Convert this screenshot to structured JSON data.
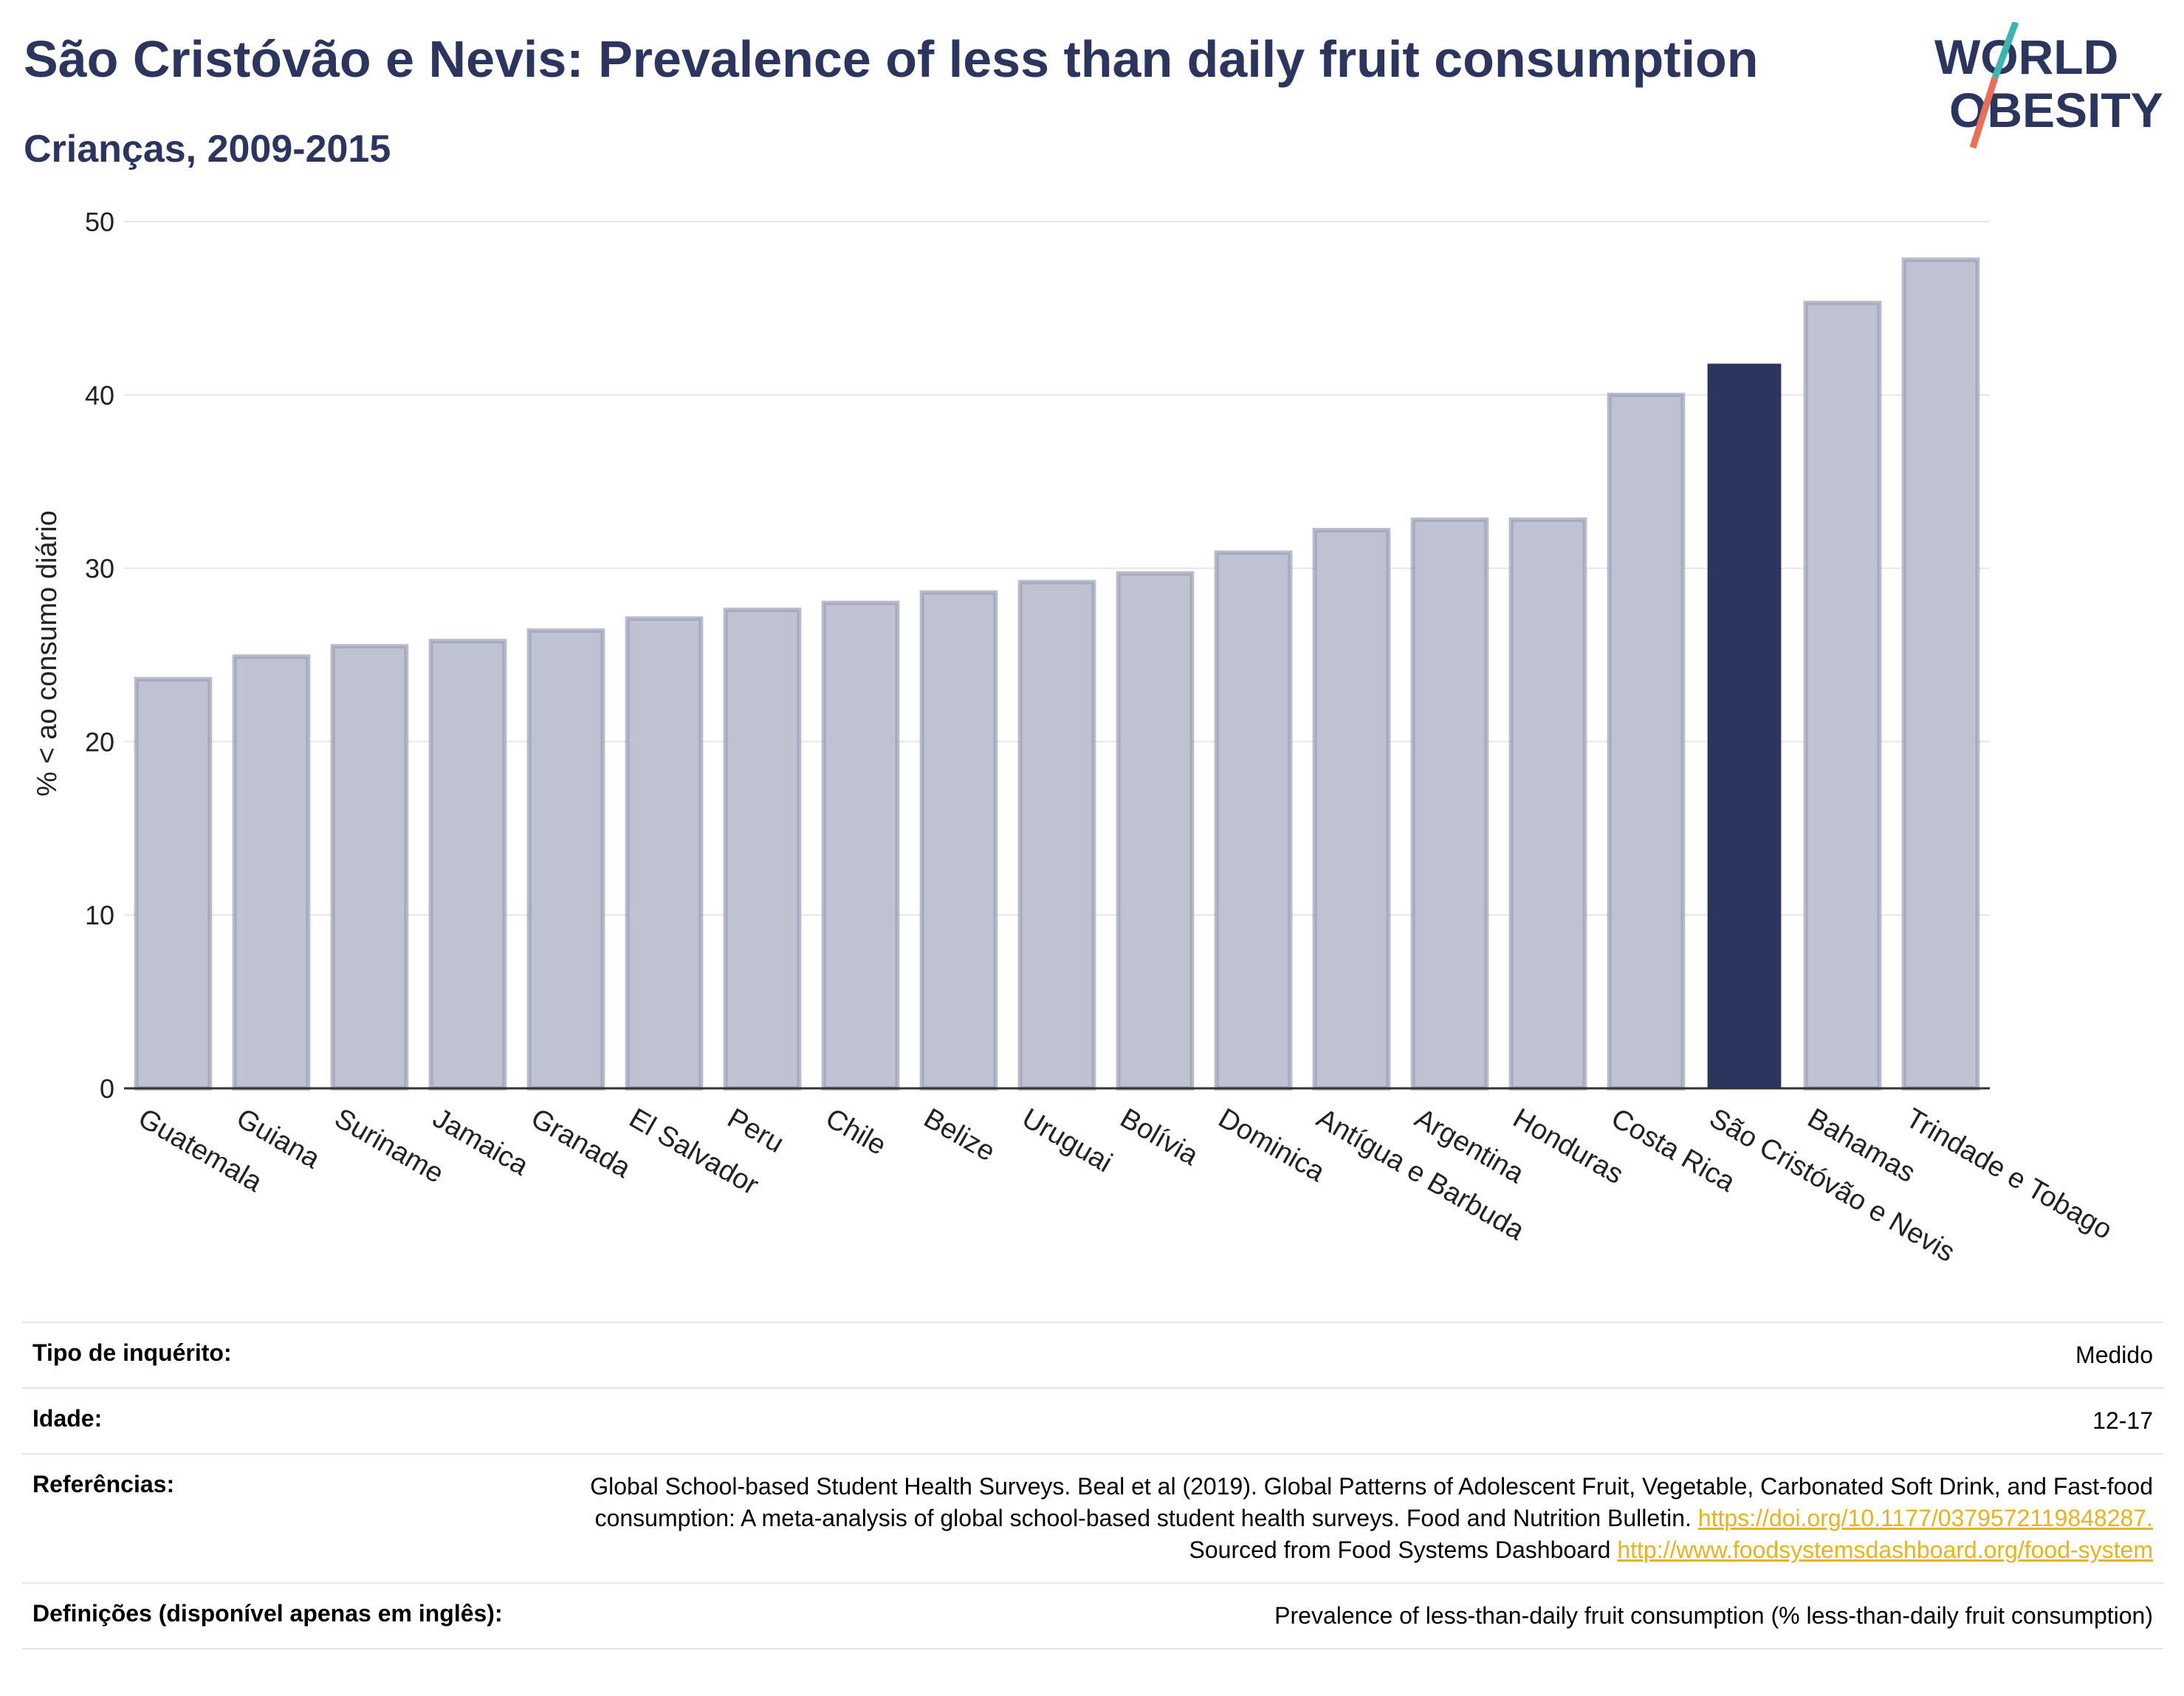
{
  "header": {
    "title": "São Cristóvão e Nevis: Prevalence of less than daily fruit consumption",
    "subtitle": "Crianças, 2009-2015",
    "logo_line1": "WORLD",
    "logo_line2": "OBESITY"
  },
  "colors": {
    "highlight": "#2b355e",
    "bars": "#bfc2d0",
    "bar_border": "#9aa0b8",
    "logo_slash_top": "#3ab5b0",
    "logo_slash_bottom": "#e8705a",
    "link": "#e7b321"
  },
  "chart_data": {
    "type": "bar",
    "title": "São Cristóvão e Nevis: Prevalence of less than daily fruit consumption",
    "subtitle": "Crianças, 2009-2015",
    "xlabel": "",
    "ylabel": "% < ao consumo diário",
    "ylim": [
      0,
      50
    ],
    "yticks": [
      0,
      10,
      20,
      30,
      40,
      50
    ],
    "grid": true,
    "highlight_category": "São Cristóvão e Nevis",
    "categories": [
      "Guatemala",
      "Guiana",
      "Suriname",
      "Jamaica",
      "Granada",
      "El Salvador",
      "Peru",
      "Chile",
      "Belize",
      "Uruguai",
      "Bolívia",
      "Dominica",
      "Antígua e Barbuda",
      "Argentina",
      "Honduras",
      "Costa Rica",
      "São Cristóvão e Nevis",
      "Bahamas",
      "Trindade e Tobago"
    ],
    "values": [
      23.6,
      24.9,
      25.5,
      25.8,
      26.4,
      27.1,
      27.6,
      28.0,
      28.6,
      29.2,
      29.7,
      30.9,
      32.2,
      32.8,
      32.8,
      40.0,
      41.8,
      45.3,
      47.8
    ]
  },
  "meta": {
    "rows": [
      {
        "label": "Tipo de inquérito:",
        "value": "Medido"
      },
      {
        "label": "Idade:",
        "value": "12-17"
      },
      {
        "label": "Referências:",
        "value": "Global School-based Student Health Surveys. Beal et al (2019). Global Patterns of Adolescent Fruit, Vegetable, Carbonated Soft Drink, and Fast-food consumption: A meta-analysis of global school-based student health surveys. Food and Nutrition Bulletin.",
        "link1": "https://doi.org/10.1177/0379572119848287.",
        "mid": " Sourced from Food Systems Dashboard ",
        "link2": "http://www.foodsystemsdashboard.org/food-system"
      },
      {
        "label": "Definições (disponível apenas em inglês):",
        "value": "Prevalence of less-than-daily fruit consumption (% less-than-daily fruit consumption)"
      }
    ]
  }
}
